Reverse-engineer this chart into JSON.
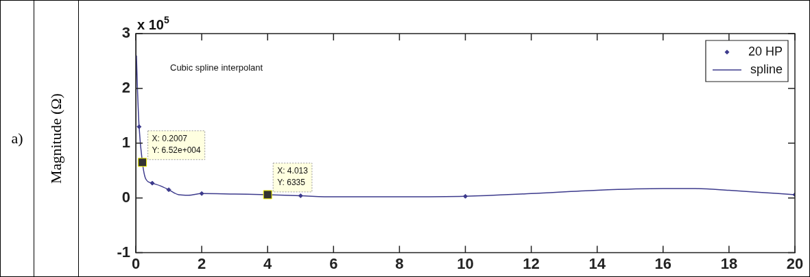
{
  "chart_data": {
    "type": "line",
    "title": "a)",
    "ylabel": "Magnitude (Ω)",
    "xlim": [
      0,
      20
    ],
    "xticks": [
      0,
      2,
      4,
      6,
      8,
      10,
      12,
      14,
      16,
      18,
      20
    ],
    "ylim": [
      -1,
      3
    ],
    "yticks": [
      -1,
      0,
      1,
      2,
      3
    ],
    "grid": false,
    "legend": "top right",
    "series": [
      {
        "name": "20 HP",
        "type": "scatter",
        "marker": "diamond",
        "color": "#3c3a8c",
        "x": [
          0.1,
          0.2,
          0.5,
          1,
          2,
          4,
          5,
          10,
          20
        ],
        "values": [
          1.3,
          0.65,
          0.27,
          0.15,
          0.08,
          0.06,
          0.04,
          0.03,
          0.06
        ]
      },
      {
        "name": "spline",
        "marker": "none",
        "line_style": "solid",
        "color": "#3c3a8c",
        "x": [
          0.02,
          0.05,
          0.1,
          0.2,
          0.3,
          0.5,
          0.75,
          1,
          1.3,
          1.6,
          2,
          3,
          4,
          5,
          6,
          7,
          8,
          10,
          12,
          14,
          16,
          17,
          18,
          19,
          20
        ],
        "values": [
          2.6,
          2,
          1.3,
          0.65,
          0.35,
          0.27,
          0.22,
          0.15,
          0.06,
          0.05,
          0.08,
          0.07,
          0.06,
          0.04,
          0.02,
          0.02,
          0.02,
          0.03,
          0.08,
          0.14,
          0.17,
          0.17,
          0.14,
          0.1,
          0.06
        ]
      }
    ],
    "annotations": [
      "x 10$^{5}$",
      "Cubic spline interpolant",
      {
        "text": "X: 0.2007\nY: 6.52e+004",
        "x": 0.2,
        "y": 0.65
      },
      {
        "text": "X: 4.013\nY: 6335",
        "x": 4,
        "y": 0.06
      }
    ]
  }
}
